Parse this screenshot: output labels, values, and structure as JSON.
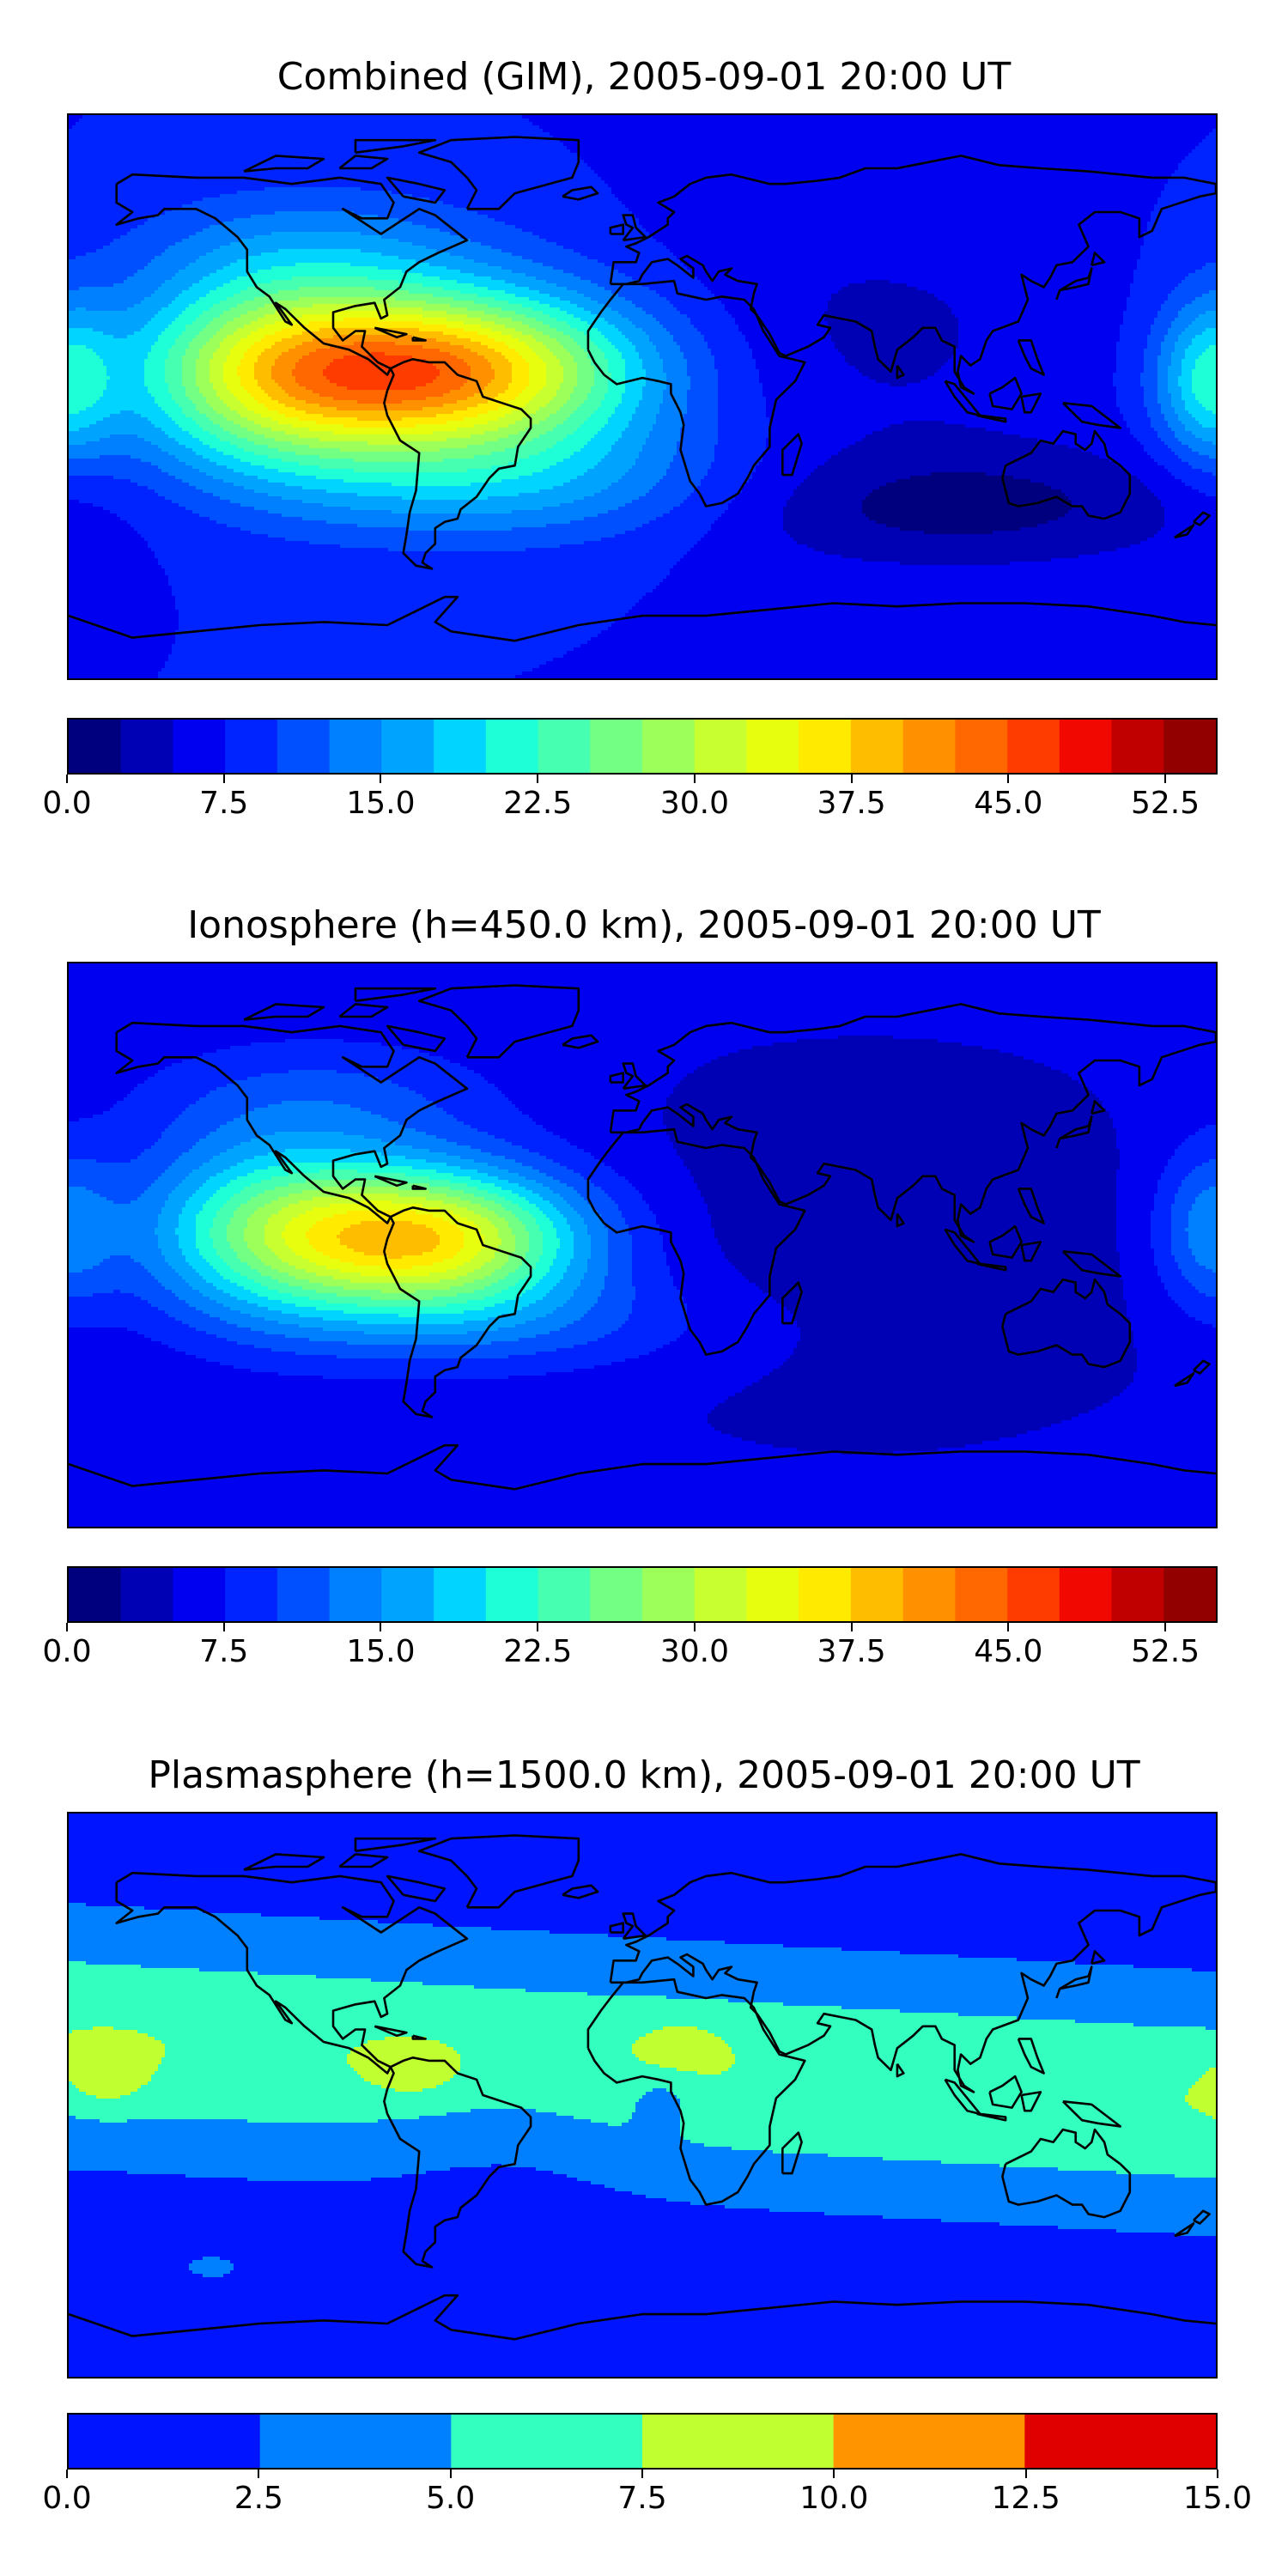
{
  "panels": [
    {
      "id": "combined",
      "title": "Combined (GIM), 2005-09-01 20:00 UT",
      "colorbar": {
        "levels": [
          0.0,
          2.5,
          5.0,
          7.5,
          10.0,
          12.5,
          15.0,
          17.5,
          20.0,
          22.5,
          25.0,
          27.5,
          30.0,
          32.5,
          35.0,
          37.5,
          40.0,
          42.5,
          45.0,
          47.5,
          50.0,
          52.5,
          55.0
        ],
        "colors": [
          "#00007f",
          "#0000b5",
          "#0000f0",
          "#0024ff",
          "#0050ff",
          "#0080ff",
          "#00a4ff",
          "#00d4ff",
          "#1fffd7",
          "#46ffb0",
          "#73ff83",
          "#9cff5a",
          "#c7ff30",
          "#e7ff0f",
          "#ffea00",
          "#ffbd00",
          "#ff9100",
          "#ff6800",
          "#ff3c00",
          "#f10800",
          "#c00000",
          "#930000"
        ],
        "tick_labels": [
          "0.0",
          "7.5",
          "15.0",
          "22.5",
          "30.0",
          "37.5",
          "45.0",
          "52.5"
        ],
        "tick_values": [
          0.0,
          7.5,
          15.0,
          22.5,
          30.0,
          37.5,
          45.0,
          52.5
        ],
        "vmin": 0.0,
        "vmax": 55.0
      },
      "field": {
        "base": 7.5,
        "blobs": [
          {
            "lon": -62,
            "lat": 8,
            "sx": 42,
            "sy": 18,
            "amp": 33
          },
          {
            "lon": -118,
            "lat": 8,
            "sx": 32,
            "sy": 22,
            "amp": 18
          },
          {
            "lon": -40,
            "lat": -28,
            "sx": 55,
            "sy": 14,
            "amp": 8
          },
          {
            "lon": -100,
            "lat": 48,
            "sx": 40,
            "sy": 14,
            "amp": 5
          },
          {
            "lon": 178,
            "lat": 5,
            "sx": 12,
            "sy": 18,
            "amp": 12
          },
          {
            "lon": 95,
            "lat": -35,
            "sx": 60,
            "sy": 14,
            "amp": -6
          },
          {
            "lon": 70,
            "lat": 20,
            "sx": 50,
            "sy": 30,
            "amp": -3
          }
        ]
      }
    },
    {
      "id": "ionosphere",
      "title": "Ionosphere  (h=450.0 km), 2005-09-01 20:00 UT",
      "colorbar": {
        "levels": [
          0.0,
          2.5,
          5.0,
          7.5,
          10.0,
          12.5,
          15.0,
          17.5,
          20.0,
          22.5,
          25.0,
          27.5,
          30.0,
          32.5,
          35.0,
          37.5,
          40.0,
          42.5,
          45.0,
          47.5,
          50.0,
          52.5,
          55.0
        ],
        "colors": [
          "#00007f",
          "#0000b5",
          "#0000f0",
          "#0024ff",
          "#0050ff",
          "#0080ff",
          "#00a4ff",
          "#00d4ff",
          "#1fffd7",
          "#46ffb0",
          "#73ff83",
          "#9cff5a",
          "#c7ff30",
          "#e7ff0f",
          "#ffea00",
          "#ffbd00",
          "#ff9100",
          "#ff6800",
          "#ff3c00",
          "#f10800",
          "#c00000",
          "#930000"
        ],
        "tick_labels": [
          "0.0",
          "7.5",
          "15.0",
          "22.5",
          "30.0",
          "37.5",
          "45.0",
          "52.5"
        ],
        "tick_values": [
          0.0,
          7.5,
          15.0,
          22.5,
          30.0,
          37.5,
          45.0,
          52.5
        ],
        "vmin": 0.0,
        "vmax": 55.0
      },
      "field": {
        "base": 5.5,
        "blobs": [
          {
            "lon": -66,
            "lat": 2,
            "sx": 34,
            "sy": 16,
            "amp": 29
          },
          {
            "lon": -118,
            "lat": 5,
            "sx": 30,
            "sy": 20,
            "amp": 16
          },
          {
            "lon": -100,
            "lat": 46,
            "sx": 40,
            "sy": 14,
            "amp": 5
          },
          {
            "lon": -40,
            "lat": -25,
            "sx": 50,
            "sy": 12,
            "amp": 5
          },
          {
            "lon": 178,
            "lat": 5,
            "sx": 12,
            "sy": 18,
            "amp": 8
          },
          {
            "lon": 70,
            "lat": 0,
            "sx": 70,
            "sy": 40,
            "amp": -2
          }
        ]
      }
    },
    {
      "id": "plasmasphere",
      "title": "Plasmasphere (h=1500.0 km), 2005-09-01 20:00 UT",
      "colorbar": {
        "levels": [
          0.0,
          2.5,
          5.0,
          7.5,
          10.0,
          12.5,
          15.0
        ],
        "colors": [
          "#0014ff",
          "#0080ff",
          "#33ffbf",
          "#c0ff30",
          "#ff9400",
          "#e00000"
        ],
        "tick_labels": [
          "0.0",
          "2.5",
          "5.0",
          "7.5",
          "10.0",
          "12.5",
          "15.0"
        ],
        "tick_values": [
          0.0,
          2.5,
          5.0,
          7.5,
          10.0,
          12.5,
          15.0
        ],
        "vmin": 0.0,
        "vmax": 15.0
      },
      "field": {
        "base": 1.2,
        "band": {
          "amp": 6.2,
          "lat0": 8,
          "tilt": -0.06,
          "sy": 24
        },
        "blobs": [
          {
            "lon": -168,
            "lat": 5,
            "sx": 9,
            "sy": 7,
            "amp": 2.6
          },
          {
            "lon": -72,
            "lat": 8,
            "sx": 10,
            "sy": 6,
            "amp": 2.4
          },
          {
            "lon": 12,
            "lat": 16,
            "sx": 9,
            "sy": 5,
            "amp": 2.4
          },
          {
            "lon": -40,
            "lat": -10,
            "sx": 28,
            "sy": 18,
            "amp": -1.4
          },
          {
            "lon": 6,
            "lat": -2,
            "sx": 7,
            "sy": 6,
            "amp": -2.4
          },
          {
            "lon": -135,
            "lat": -55,
            "sx": 7,
            "sy": 3,
            "amp": 2.0
          }
        ]
      }
    }
  ]
}
